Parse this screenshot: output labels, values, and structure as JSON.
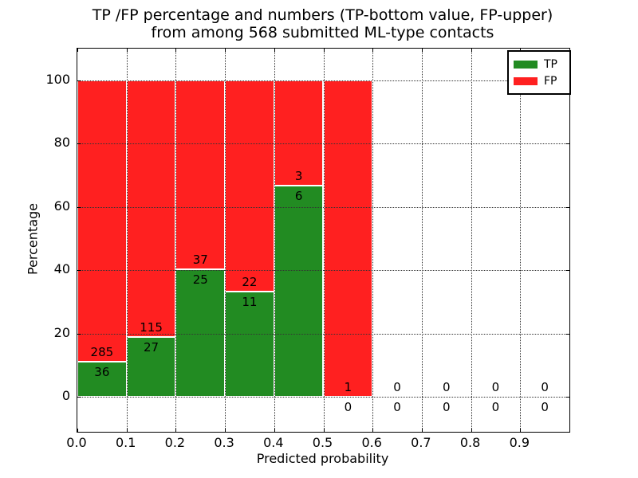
{
  "title": {
    "line1": "TP /FP percentage and numbers (TP-bottom value, FP-upper)",
    "line2": "from among 568 submitted ML-type contacts"
  },
  "axes": {
    "xlabel": "Predicted probability",
    "ylabel": "Percentage",
    "x_tick_labels": [
      "0.0",
      "0.1",
      "0.2",
      "0.3",
      "0.4",
      "0.5",
      "0.6",
      "0.7",
      "0.8",
      "0.9"
    ],
    "y_tick_labels": [
      "0",
      "20",
      "40",
      "60",
      "80",
      "100"
    ]
  },
  "legend": {
    "items": [
      {
        "label": "TP",
        "color": "#228b22"
      },
      {
        "label": "FP",
        "color": "#ff2020"
      }
    ]
  },
  "chart_data": {
    "type": "bar",
    "stacked": true,
    "title": "TP /FP percentage and numbers (TP-bottom value, FP-upper) from among 568 submitted ML-type contacts",
    "xlabel": "Predicted probability",
    "ylabel": "Percentage",
    "total_contacts": 568,
    "bin_width": 0.1,
    "bin_starts": [
      0.0,
      0.1,
      0.2,
      0.3,
      0.4,
      0.5,
      0.6,
      0.7,
      0.8,
      0.9
    ],
    "categories": [
      "0.0-0.1",
      "0.1-0.2",
      "0.2-0.3",
      "0.3-0.4",
      "0.4-0.5",
      "0.5-0.6",
      "0.6-0.7",
      "0.7-0.8",
      "0.8-0.9",
      "0.9-1.0"
    ],
    "series": [
      {
        "name": "TP",
        "color": "#228b22",
        "counts": [
          36,
          27,
          25,
          11,
          6,
          0,
          0,
          0,
          0,
          0
        ],
        "percent_of_bin": [
          11.2,
          19.0,
          40.3,
          33.3,
          66.7,
          0.0,
          0.0,
          0.0,
          0.0,
          0.0
        ]
      },
      {
        "name": "FP",
        "color": "#ff2020",
        "counts": [
          285,
          115,
          37,
          22,
          3,
          1,
          0,
          0,
          0,
          0
        ],
        "percent_of_bin": [
          88.8,
          81.0,
          59.7,
          66.7,
          33.3,
          100.0,
          0.0,
          0.0,
          0.0,
          0.0
        ]
      }
    ],
    "x_tick_values": [
      0.0,
      0.1,
      0.2,
      0.3,
      0.4,
      0.5,
      0.6,
      0.7,
      0.8,
      0.9
    ],
    "y_tick_values": [
      0,
      20,
      40,
      60,
      80,
      100
    ],
    "xlim": [
      0.0,
      1.0
    ],
    "ylim": [
      -11,
      110
    ],
    "grid": "dotted, drawn above bars",
    "legend_position": "upper right"
  }
}
